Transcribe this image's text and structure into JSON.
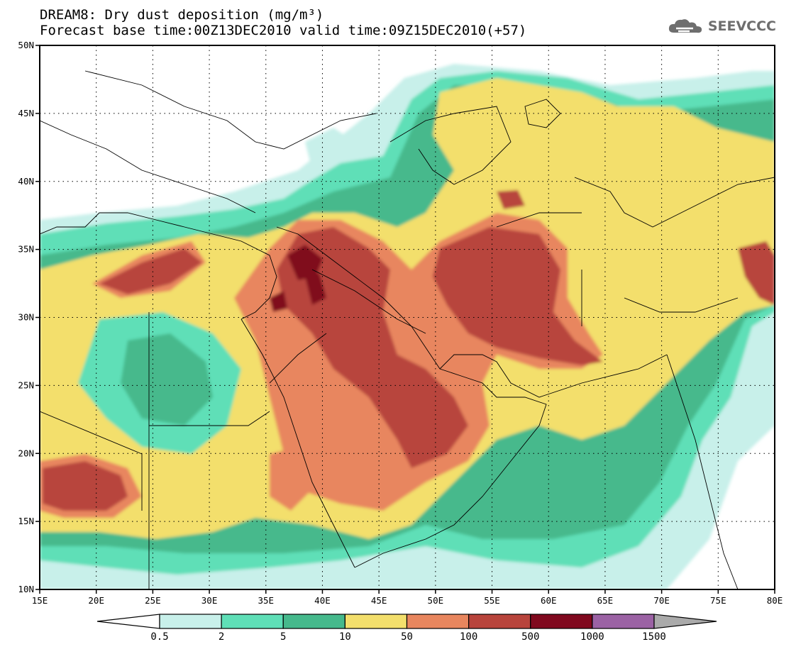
{
  "header": {
    "title_line1": "DREAM8: Dry dust deposition (mg/m³)",
    "title_line2": "Forecast base time:00Z13DEC2010 valid time:09Z15DEC2010(+57)",
    "logo_text": "SEEVCCC"
  },
  "map": {
    "lon_range": [
      15,
      80
    ],
    "lat_range": [
      10,
      50
    ],
    "lon_ticks": [
      "15E",
      "20E",
      "25E",
      "30E",
      "35E",
      "40E",
      "45E",
      "50E",
      "55E",
      "60E",
      "65E",
      "70E",
      "75E",
      "80E"
    ],
    "lat_ticks": [
      "10N",
      "15N",
      "20N",
      "25N",
      "30N",
      "35N",
      "40N",
      "45N",
      "50N"
    ],
    "grid": "dotted"
  },
  "colorbar": {
    "levels": [
      "0.5",
      "2",
      "5",
      "10",
      "50",
      "100",
      "500",
      "1000",
      "1500"
    ],
    "colors": [
      "#c8f0ea",
      "#5fdfb7",
      "#46b98c",
      "#f3df6c",
      "#e8865e",
      "#b8443c",
      "#80091e",
      "#9b62a4"
    ],
    "under_color": "#ffffff",
    "over_color": "#aaaaaa"
  }
}
